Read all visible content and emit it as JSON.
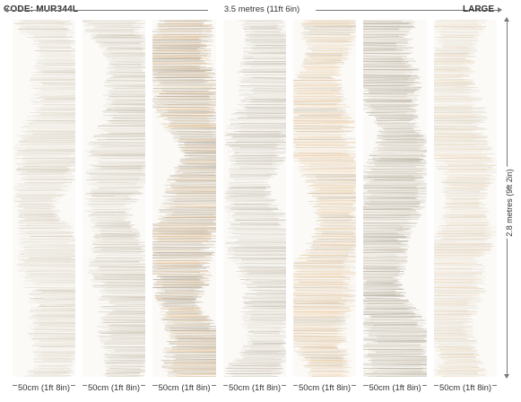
{
  "header": {
    "code_label": "CODE: MUR344L",
    "total_width": "3.5 metres (11ft 6in)",
    "size_label": "LARGE"
  },
  "height_label": "2.8 metres (9ft 2in)",
  "panels": [
    {
      "width_label": "50cm (1ft 8in)",
      "colors": [
        "#e7e1d6",
        "#d8d0c2",
        "#f2efe8"
      ]
    },
    {
      "width_label": "50cm (1ft 8in)",
      "colors": [
        "#ddd7cc",
        "#cfc7b9",
        "#efebe3"
      ]
    },
    {
      "width_label": "50cm (1ft 8in)",
      "colors": [
        "#d2c8b7",
        "#e8c9a3",
        "#b9b2a6"
      ]
    },
    {
      "width_label": "50cm (1ft 8in)",
      "colors": [
        "#e2dcd2",
        "#c9c3b8",
        "#f0ece5"
      ]
    },
    {
      "width_label": "50cm (1ft 8in)",
      "colors": [
        "#efd4b3",
        "#d6cdbd",
        "#f4e6d4"
      ]
    },
    {
      "width_label": "50cm (1ft 8in)",
      "colors": [
        "#cfc8bb",
        "#bdb6a9",
        "#e5dfd4"
      ]
    },
    {
      "width_label": "50cm (1ft 8in)",
      "colors": [
        "#e2dccf",
        "#eedcc5",
        "#f1ede6"
      ]
    }
  ]
}
